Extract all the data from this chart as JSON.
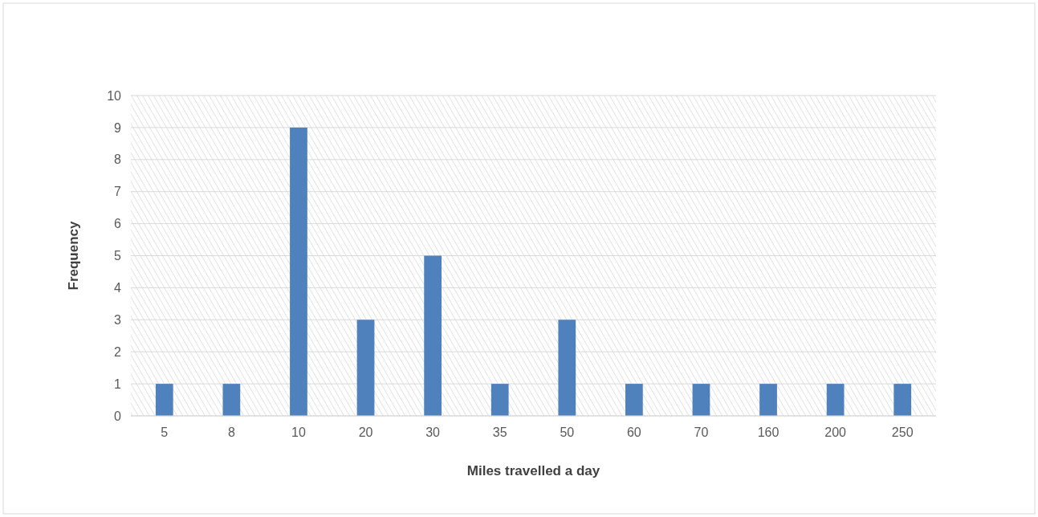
{
  "chart_data": {
    "type": "bar",
    "xlabel": "Miles travelled a day",
    "ylabel": "Frequency",
    "categories": [
      "5",
      "8",
      "10",
      "20",
      "30",
      "35",
      "50",
      "60",
      "70",
      "160",
      "200",
      "250"
    ],
    "values": [
      1,
      1,
      9,
      3,
      5,
      1,
      3,
      1,
      1,
      1,
      1,
      1
    ],
    "color": "#4f81bd",
    "ylim": [
      0,
      10
    ],
    "yticks": [
      0,
      1,
      2,
      3,
      4,
      5,
      6,
      7,
      8,
      9,
      10
    ],
    "grid": "y"
  }
}
